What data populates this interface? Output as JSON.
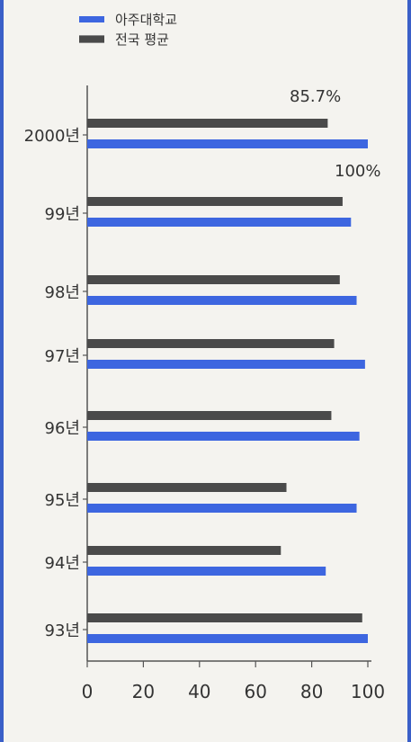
{
  "colors": {
    "ajou": "#3d66e0",
    "national": "#4a4a4a",
    "axis": "#555555",
    "frame": "#3a5fc8"
  },
  "legend": {
    "ajou": "아주대학교",
    "national": "전국 평균"
  },
  "chart_data": {
    "type": "bar",
    "orientation": "horizontal",
    "categories": [
      "2000년",
      "99년",
      "98년",
      "97년",
      "96년",
      "95년",
      "94년",
      "93년"
    ],
    "series": [
      {
        "name": "아주대학교",
        "values": [
          100,
          94,
          96,
          99,
          97,
          96,
          85,
          100
        ]
      },
      {
        "name": "전국 평균",
        "values": [
          85.7,
          91,
          90,
          88,
          87,
          71,
          69,
          98
        ]
      }
    ],
    "annotations": [
      "85.7%",
      "100%"
    ],
    "xticks": [
      "0",
      "20",
      "40",
      "60",
      "80",
      "100"
    ],
    "xlim": [
      0,
      100
    ],
    "grid": false,
    "legend_position": "top-left"
  }
}
